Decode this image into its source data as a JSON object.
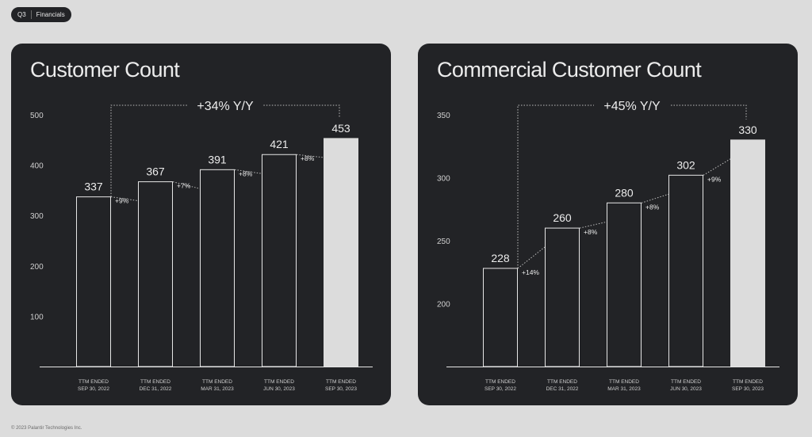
{
  "header": {
    "quarter": "Q3",
    "section": "Financials"
  },
  "footer": {
    "copyright": "© 2023 Palantir Technologies Inc."
  },
  "colors": {
    "panel": "#222326",
    "bar_outline": "#e6e6e6",
    "bar_highlight": "#dcdcdc",
    "text": "#ececec"
  },
  "chart_data": [
    {
      "type": "bar",
      "title": "Customer Count",
      "categories": [
        [
          "TTM ENDED",
          "SEP 30, 2022"
        ],
        [
          "TTM ENDED",
          "DEC 31, 2022"
        ],
        [
          "TTM ENDED",
          "MAR 31, 2023"
        ],
        [
          "TTM ENDED",
          "JUN 30, 2023"
        ],
        [
          "TTM ENDED",
          "SEP 30, 2023"
        ]
      ],
      "values": [
        337,
        367,
        391,
        421,
        453
      ],
      "value_labels": [
        "337",
        "367",
        "391",
        "421",
        "453"
      ],
      "growth_labels": [
        "+9%",
        "+7%",
        "+8%",
        "+8%"
      ],
      "yoy_label": "+34% Y/Y",
      "yticks": [
        100,
        200,
        300,
        400,
        500
      ],
      "ylim": [
        0,
        500
      ],
      "highlight_last": true
    },
    {
      "type": "bar",
      "title": "Commercial Customer Count",
      "categories": [
        [
          "TTM ENDED",
          "SEP 30, 2022"
        ],
        [
          "TTM ENDED",
          "DEC 31, 2022"
        ],
        [
          "TTM ENDED",
          "MAR 31, 2023"
        ],
        [
          "TTM ENDED",
          "JUN 30, 2023"
        ],
        [
          "TTM ENDED",
          "SEP 30, 2023"
        ]
      ],
      "values": [
        228,
        260,
        280,
        302,
        330
      ],
      "value_labels": [
        "228",
        "260",
        "280",
        "302",
        "330"
      ],
      "growth_labels": [
        "+14%",
        "+8%",
        "+8%",
        "+9%"
      ],
      "yoy_label": "+45% Y/Y",
      "yticks": [
        200,
        250,
        300,
        350
      ],
      "ylim": [
        150,
        350
      ],
      "highlight_last": true
    }
  ]
}
